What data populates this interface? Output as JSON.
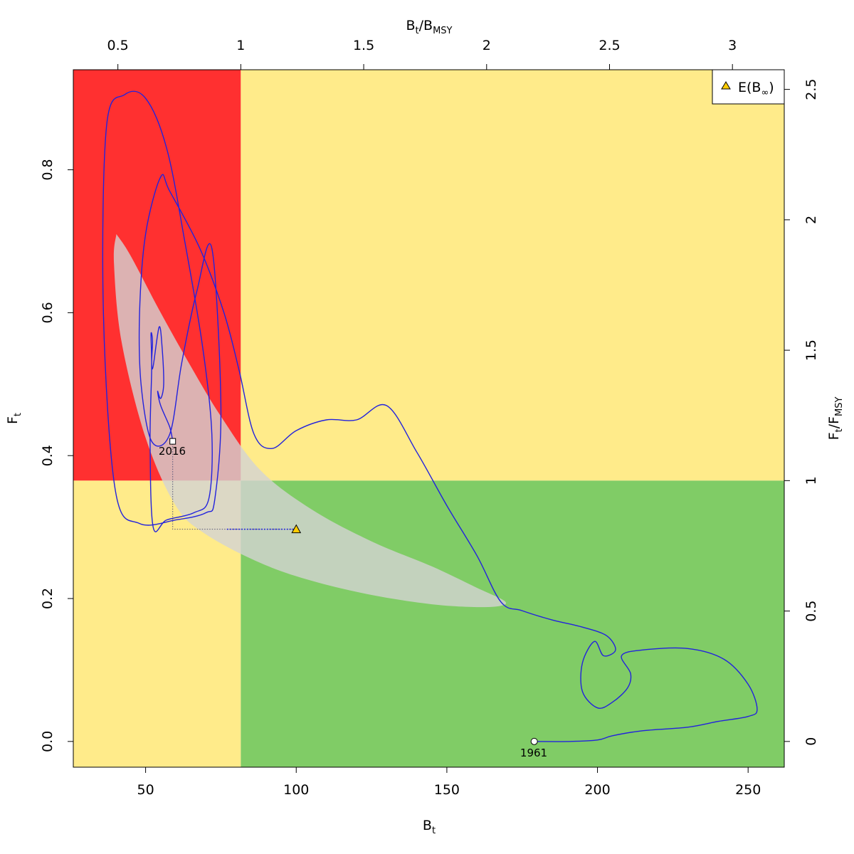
{
  "chart_data": {
    "type": "scatter",
    "title": "",
    "xlabel": "B",
    "xlabel_sub": "t",
    "ylabel": "F",
    "ylabel_sub": "t",
    "top_label_parts": [
      "B",
      "t",
      "/B",
      "MSY"
    ],
    "right_label_parts": [
      "F",
      "t",
      "/F",
      "MSY"
    ],
    "xlim": [
      26,
      262
    ],
    "ylim": [
      -0.036,
      0.94
    ],
    "x_ticks": [
      "50",
      "100",
      "150",
      "200",
      "250"
    ],
    "y_ticks": [
      "0.0",
      "0.2",
      "0.4",
      "0.6",
      "0.8"
    ],
    "top_ticks": [
      "0.5",
      "1",
      "1.5",
      "2",
      "2.5",
      "3"
    ],
    "right_ticks": [
      "0",
      "0.5",
      "1",
      "1.5",
      "2",
      "2.5"
    ],
    "Bmsy": 81.6,
    "Fmsy": 0.365,
    "zone_colors": {
      "red": "#ff3030",
      "yellow": "#ffeb8a",
      "green": "#80cc66",
      "ellipse": "#d3d3d3",
      "trajectory": "#2222dd"
    },
    "legend": {
      "position": "top-right",
      "label": "E(B",
      "label_symbol": "∞",
      "label_end": ")"
    },
    "start_label": "1961",
    "end_label": "2016",
    "start_point": [
      179,
      0.0
    ],
    "end_point": [
      59,
      0.42
    ],
    "expected_point": [
      100,
      0.297
    ],
    "confidence_region": [
      [
        40.3,
        0.71
      ],
      [
        45,
        0.68
      ],
      [
        55,
        0.6
      ],
      [
        65,
        0.525
      ],
      [
        75,
        0.455
      ],
      [
        88,
        0.38
      ],
      [
        105,
        0.325
      ],
      [
        125,
        0.28
      ],
      [
        145,
        0.245
      ],
      [
        160,
        0.215
      ],
      [
        169,
        0.197
      ],
      [
        168,
        0.19
      ],
      [
        160,
        0.188
      ],
      [
        145,
        0.192
      ],
      [
        125,
        0.205
      ],
      [
        105,
        0.225
      ],
      [
        88,
        0.25
      ],
      [
        70,
        0.29
      ],
      [
        60,
        0.33
      ],
      [
        50,
        0.425
      ],
      [
        42,
        0.56
      ],
      [
        39.5,
        0.67
      ],
      [
        40.3,
        0.71
      ]
    ],
    "trajectory": [
      [
        179,
        0.0
      ],
      [
        190,
        0.0
      ],
      [
        200,
        0.002
      ],
      [
        205,
        0.008
      ],
      [
        215,
        0.015
      ],
      [
        230,
        0.02
      ],
      [
        240,
        0.028
      ],
      [
        250,
        0.035
      ],
      [
        253,
        0.045
      ],
      [
        250,
        0.08
      ],
      [
        242,
        0.115
      ],
      [
        230,
        0.13
      ],
      [
        215,
        0.128
      ],
      [
        208,
        0.12
      ],
      [
        211,
        0.095
      ],
      [
        210,
        0.075
      ],
      [
        205,
        0.055
      ],
      [
        200,
        0.047
      ],
      [
        195,
        0.07
      ],
      [
        195,
        0.11
      ],
      [
        199,
        0.14
      ],
      [
        202,
        0.12
      ],
      [
        206,
        0.128
      ],
      [
        203,
        0.148
      ],
      [
        195,
        0.16
      ],
      [
        185,
        0.17
      ],
      [
        175,
        0.183
      ],
      [
        168,
        0.195
      ],
      [
        160,
        0.26
      ],
      [
        150,
        0.33
      ],
      [
        140,
        0.405
      ],
      [
        130,
        0.47
      ],
      [
        120,
        0.45
      ],
      [
        110,
        0.45
      ],
      [
        100,
        0.435
      ],
      [
        92,
        0.41
      ],
      [
        86,
        0.43
      ],
      [
        81,
        0.52
      ],
      [
        76,
        0.6
      ],
      [
        68,
        0.69
      ],
      [
        58,
        0.77
      ],
      [
        55,
        0.79
      ],
      [
        50,
        0.71
      ],
      [
        48,
        0.6
      ],
      [
        48.5,
        0.5
      ],
      [
        52,
        0.42
      ],
      [
        58,
        0.43
      ],
      [
        62,
        0.53
      ],
      [
        67,
        0.63
      ],
      [
        72,
        0.69
      ],
      [
        75,
        0.47
      ],
      [
        73,
        0.34
      ],
      [
        70,
        0.32
      ],
      [
        60,
        0.31
      ],
      [
        48,
        0.305
      ],
      [
        40,
        0.35
      ],
      [
        36,
        0.6
      ],
      [
        37,
        0.86
      ],
      [
        43,
        0.905
      ],
      [
        50,
        0.9
      ],
      [
        57,
        0.83
      ],
      [
        63,
        0.7
      ],
      [
        69,
        0.55
      ],
      [
        72,
        0.43
      ],
      [
        71,
        0.34
      ],
      [
        66,
        0.32
      ],
      [
        57,
        0.31
      ],
      [
        52.5,
        0.3
      ],
      [
        51.5,
        0.42
      ],
      [
        52,
        0.52
      ],
      [
        51.8,
        0.57
      ],
      [
        52.3,
        0.56
      ],
      [
        52,
        0.53
      ],
      [
        52.5,
        0.525
      ],
      [
        54.5,
        0.58
      ],
      [
        55.5,
        0.55
      ],
      [
        56,
        0.5
      ],
      [
        55,
        0.48
      ],
      [
        54,
        0.49
      ],
      [
        55,
        0.47
      ],
      [
        58,
        0.44
      ],
      [
        59,
        0.42
      ]
    ]
  }
}
